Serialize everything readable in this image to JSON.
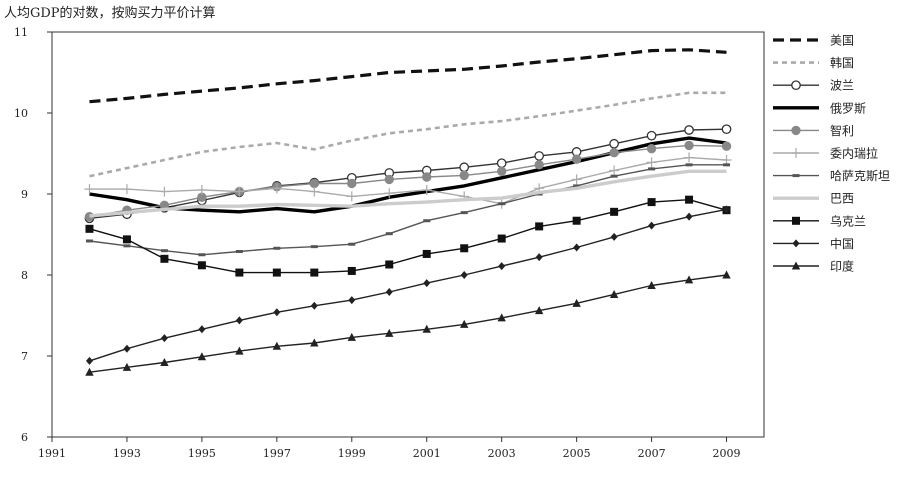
{
  "chart_data": {
    "type": "line",
    "title": "人均GDP的对数，按购买力平价计算",
    "xlabel": "",
    "ylabel": "",
    "xlim": [
      1991,
      2010
    ],
    "ylim": [
      6,
      11
    ],
    "x_ticks": [
      1991,
      1993,
      1995,
      1997,
      1999,
      2001,
      2003,
      2005,
      2007,
      2009
    ],
    "y_ticks": [
      6,
      7,
      8,
      9,
      10,
      11
    ],
    "grid": false,
    "legend_position": "right",
    "x": [
      1992,
      1993,
      1994,
      1995,
      1996,
      1997,
      1998,
      1999,
      2000,
      2001,
      2002,
      2003,
      2004,
      2005,
      2006,
      2007,
      2008,
      2009
    ],
    "series": [
      {
        "name": "美国",
        "style": "dashed-thick",
        "color": "#111111",
        "marker": "none",
        "values": [
          10.14,
          10.18,
          10.23,
          10.27,
          10.31,
          10.36,
          10.4,
          10.45,
          10.5,
          10.52,
          10.54,
          10.58,
          10.63,
          10.67,
          10.72,
          10.77,
          10.78,
          10.75
        ]
      },
      {
        "name": "韩国",
        "style": "dashed-light",
        "color": "#aaaaaa",
        "marker": "none",
        "values": [
          9.22,
          9.32,
          9.42,
          9.52,
          9.58,
          9.63,
          9.55,
          9.66,
          9.75,
          9.8,
          9.86,
          9.9,
          9.96,
          10.03,
          10.1,
          10.18,
          10.25,
          10.25
        ]
      },
      {
        "name": "波兰",
        "style": "solid",
        "color": "#333333",
        "marker": "circle-open",
        "values": [
          8.7,
          8.75,
          8.83,
          8.92,
          9.02,
          9.1,
          9.14,
          9.2,
          9.26,
          9.29,
          9.33,
          9.38,
          9.47,
          9.52,
          9.62,
          9.72,
          9.79,
          9.8
        ]
      },
      {
        "name": "俄罗斯",
        "style": "solid-thick",
        "color": "#000000",
        "marker": "none",
        "values": [
          9.0,
          8.93,
          8.83,
          8.8,
          8.78,
          8.82,
          8.78,
          8.85,
          8.96,
          9.03,
          9.1,
          9.2,
          9.3,
          9.4,
          9.51,
          9.62,
          9.69,
          9.63
        ]
      },
      {
        "name": "智利",
        "style": "solid",
        "color": "#888888",
        "marker": "circle-filled",
        "values": [
          8.72,
          8.8,
          8.86,
          8.96,
          9.03,
          9.09,
          9.13,
          9.13,
          9.18,
          9.21,
          9.23,
          9.28,
          9.36,
          9.43,
          9.51,
          9.56,
          9.6,
          9.59
        ]
      },
      {
        "name": "委内瑞拉",
        "style": "solid",
        "color": "#aaaaaa",
        "marker": "plus",
        "values": [
          9.06,
          9.06,
          9.03,
          9.05,
          9.03,
          9.07,
          9.03,
          8.97,
          9.01,
          9.05,
          8.97,
          8.88,
          9.07,
          9.18,
          9.29,
          9.39,
          9.45,
          9.42
        ]
      },
      {
        "name": "哈萨克斯坦",
        "style": "solid",
        "color": "#555555",
        "marker": "dash",
        "values": [
          8.42,
          8.36,
          8.3,
          8.25,
          8.29,
          8.33,
          8.35,
          8.38,
          8.51,
          8.67,
          8.77,
          8.88,
          9.0,
          9.1,
          9.22,
          9.31,
          9.36,
          9.36
        ]
      },
      {
        "name": "巴西",
        "style": "solid-thick",
        "color": "#cccccc",
        "marker": "none",
        "values": [
          8.73,
          8.77,
          8.81,
          8.85,
          8.85,
          8.87,
          8.86,
          8.85,
          8.88,
          8.9,
          8.93,
          8.95,
          9.02,
          9.07,
          9.15,
          9.22,
          9.28,
          9.28
        ]
      },
      {
        "name": "乌克兰",
        "style": "solid",
        "color": "#111111",
        "marker": "square-filled",
        "values": [
          8.57,
          8.44,
          8.2,
          8.12,
          8.03,
          8.03,
          8.03,
          8.05,
          8.13,
          8.26,
          8.33,
          8.45,
          8.6,
          8.67,
          8.78,
          8.9,
          8.93,
          8.8
        ]
      },
      {
        "name": "中国",
        "style": "solid",
        "color": "#222222",
        "marker": "diamond-filled",
        "values": [
          6.94,
          7.09,
          7.22,
          7.33,
          7.44,
          7.54,
          7.62,
          7.69,
          7.79,
          7.9,
          8.0,
          8.11,
          8.22,
          8.34,
          8.47,
          8.61,
          8.72,
          8.81
        ]
      },
      {
        "name": "印度",
        "style": "solid",
        "color": "#222222",
        "marker": "triangle-filled",
        "values": [
          6.8,
          6.86,
          6.92,
          6.99,
          7.06,
          7.12,
          7.16,
          7.23,
          7.28,
          7.33,
          7.39,
          7.47,
          7.56,
          7.65,
          7.76,
          7.87,
          7.94,
          8.0
        ]
      }
    ]
  }
}
